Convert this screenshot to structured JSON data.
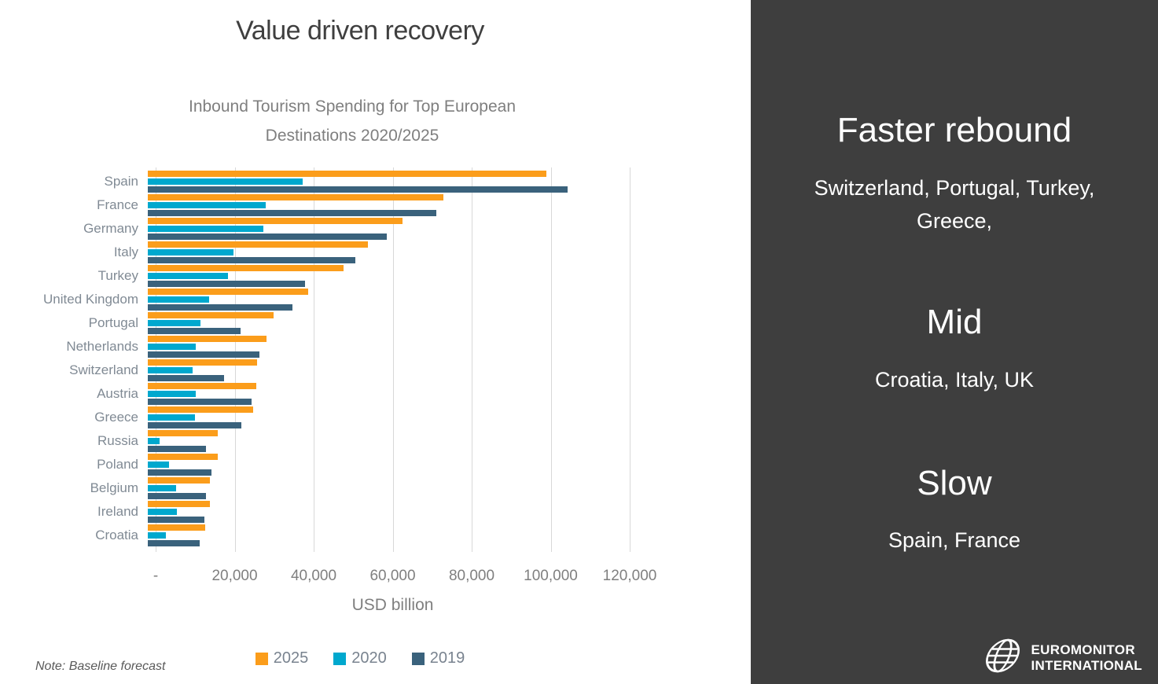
{
  "title": "Value driven recovery",
  "note": "Note: Baseline forecast",
  "colors": {
    "accent_orange": "#fb9d1b",
    "accent_cyan": "#00a8ce",
    "accent_slate": "#3a627c",
    "sidebar_bg": "#3e3e3e",
    "title_text": "#3f3f3f",
    "muted_text": "#7f7f7f",
    "gridline": "#d8d8d8"
  },
  "chart_data": {
    "type": "bar",
    "orientation": "horizontal",
    "title": "Inbound Tourism Spending for Top European Destinations 2020/2025",
    "xlabel": "USD billion",
    "xlim": [
      0,
      120000
    ],
    "x_ticks": [
      "-",
      "20,000",
      "40,000",
      "60,000",
      "80,000",
      "100,000",
      "120,000"
    ],
    "grid": "vertical",
    "legend_position": "bottom",
    "categories": [
      "Spain",
      "France",
      "Germany",
      "Italy",
      "Turkey",
      "United Kingdom",
      "Portugal",
      "Netherlands",
      "Switzerland",
      "Austria",
      "Greece",
      "Russia",
      "Poland",
      "Belgium",
      "Ireland",
      "Croatia"
    ],
    "series": [
      {
        "name": "2025",
        "color": "#fb9d1b",
        "values": [
          99300,
          73600,
          63500,
          54900,
          48700,
          39900,
          31400,
          29500,
          27200,
          27100,
          26300,
          17500,
          17400,
          15500,
          15500,
          14200
        ]
      },
      {
        "name": "2020",
        "color": "#00a8ce",
        "values": [
          38500,
          29300,
          28800,
          21300,
          20000,
          15200,
          13100,
          12000,
          11200,
          12000,
          11800,
          2900,
          5200,
          7000,
          7200,
          4600
        ]
      },
      {
        "name": "2019",
        "color": "#3a627c",
        "values": [
          104500,
          71900,
          59500,
          51700,
          39200,
          36100,
          23100,
          27700,
          18900,
          25800,
          23300,
          14500,
          15900,
          14500,
          14000,
          12900
        ]
      }
    ]
  },
  "sidebar": {
    "sections": [
      {
        "heading": "Faster rebound",
        "body": "Switzerland, Portugal, Turkey, Greece,"
      },
      {
        "heading": "Mid",
        "body": "Croatia, Italy, UK"
      },
      {
        "heading": "Slow",
        "body": "Spain, France"
      }
    ],
    "logo": {
      "line1": "EUROMONITOR",
      "line2": "INTERNATIONAL"
    }
  }
}
